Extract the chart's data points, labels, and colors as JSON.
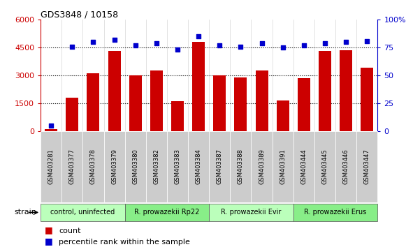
{
  "title": "GDS3848 / 10158",
  "samples": [
    "GSM403281",
    "GSM403377",
    "GSM403378",
    "GSM403379",
    "GSM403380",
    "GSM403382",
    "GSM403383",
    "GSM403384",
    "GSM403387",
    "GSM403388",
    "GSM403389",
    "GSM403391",
    "GSM403444",
    "GSM403445",
    "GSM403446",
    "GSM403447"
  ],
  "counts": [
    100,
    1800,
    3100,
    4300,
    3000,
    3250,
    1600,
    4800,
    3000,
    2900,
    3250,
    1650,
    2850,
    4300,
    4350,
    3400
  ],
  "percentiles": [
    5,
    76,
    80,
    82,
    77,
    79,
    73,
    85,
    77,
    76,
    79,
    75,
    77,
    79,
    80,
    81
  ],
  "count_ylim": [
    0,
    6000
  ],
  "percentile_ylim": [
    0,
    100
  ],
  "count_yticks": [
    0,
    1500,
    3000,
    4500,
    6000
  ],
  "percentile_yticks": [
    0,
    25,
    50,
    75,
    100
  ],
  "bar_color": "#cc0000",
  "dot_color": "#0000cc",
  "groups": [
    {
      "label": "control, uninfected",
      "start": 0,
      "end": 4,
      "color": "#bbffbb"
    },
    {
      "label": "R. prowazekii Rp22",
      "start": 4,
      "end": 8,
      "color": "#88ee88"
    },
    {
      "label": "R. prowazekii Evir",
      "start": 8,
      "end": 12,
      "color": "#bbffbb"
    },
    {
      "label": "R. prowazekii Erus",
      "start": 12,
      "end": 16,
      "color": "#88ee88"
    }
  ],
  "strain_label": "strain",
  "legend_count_label": "count",
  "legend_pct_label": "percentile rank within the sample",
  "bg_color": "#ffffff",
  "plot_bg": "#ffffff",
  "tick_label_bg": "#cccccc"
}
